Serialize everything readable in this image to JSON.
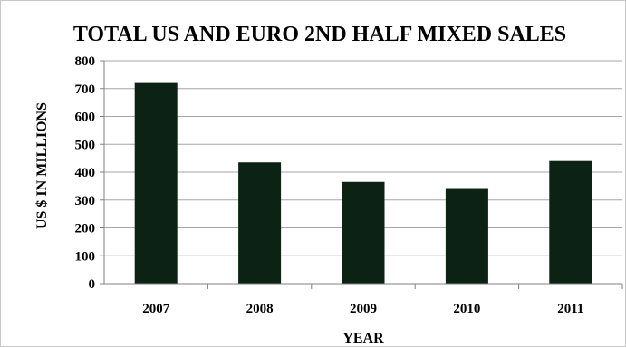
{
  "chart_data": {
    "type": "bar",
    "title": "TOTAL US AND EURO 2ND HALF MIXED SALES",
    "xlabel": "YEAR",
    "ylabel": "US $ IN MILLIONS",
    "categories": [
      "2007",
      "2008",
      "2009",
      "2010",
      "2011"
    ],
    "values": [
      720,
      435,
      365,
      343,
      440
    ],
    "ylim": [
      0,
      800
    ],
    "yticks": [
      "0",
      "100",
      "200",
      "300",
      "400",
      "500",
      "600",
      "700",
      "800"
    ],
    "grid": true,
    "legend": "none",
    "colors": {
      "bar": "#0c2214",
      "grid": "#a6a6a6",
      "axis": "#808080"
    }
  }
}
